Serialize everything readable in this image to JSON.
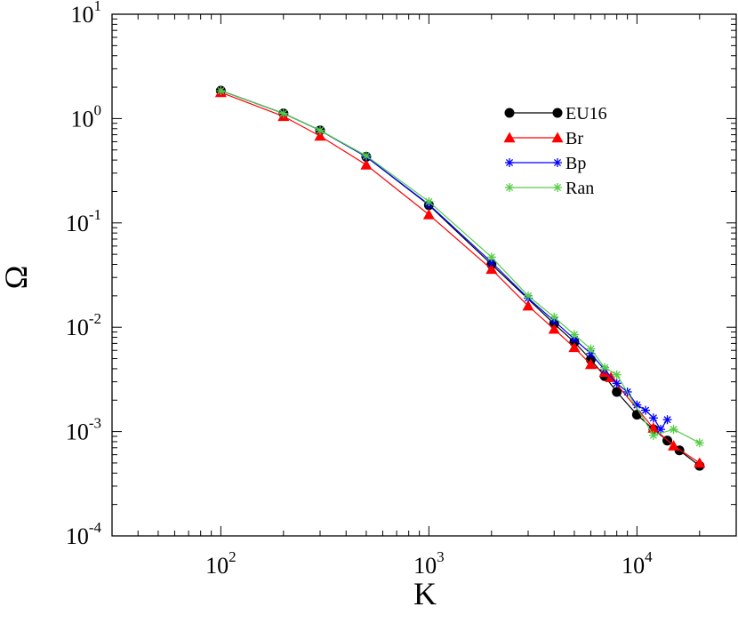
{
  "chart_data": {
    "type": "line",
    "title": "",
    "xlabel": "K",
    "ylabel": "Ω",
    "xscale": "log",
    "yscale": "log",
    "xlim": [
      30,
      30000
    ],
    "ylim": [
      0.0001,
      10
    ],
    "grid": false,
    "legend_position": "top-right",
    "x_ticks": [
      {
        "base": "10",
        "exp": "2",
        "value": 100
      },
      {
        "base": "10",
        "exp": "3",
        "value": 1000
      },
      {
        "base": "10",
        "exp": "4",
        "value": 10000
      }
    ],
    "y_ticks": [
      {
        "base": "10",
        "exp": "-4",
        "value": 0.0001
      },
      {
        "base": "10",
        "exp": "-3",
        "value": 0.001
      },
      {
        "base": "10",
        "exp": "-2",
        "value": 0.01
      },
      {
        "base": "10",
        "exp": "-1",
        "value": 0.1
      },
      {
        "base": "10",
        "exp": "0",
        "value": 1
      },
      {
        "base": "10",
        "exp": "1",
        "value": 10
      }
    ],
    "series": [
      {
        "name": "EU16",
        "color": "#000000",
        "marker": "circle",
        "x": [
          100,
          200,
          300,
          500,
          1000,
          2000,
          4000,
          5000,
          6000,
          7000,
          8000,
          10000,
          12000,
          14000,
          16000,
          20000
        ],
        "y": [
          1.85,
          1.12,
          0.77,
          0.43,
          0.148,
          0.04,
          0.0108,
          0.0072,
          0.0049,
          0.0034,
          0.0024,
          0.00145,
          0.00105,
          0.00082,
          0.00066,
          0.00047
        ]
      },
      {
        "name": "Br",
        "color": "#ff0000",
        "marker": "triangle",
        "x": [
          100,
          200,
          300,
          500,
          1000,
          2000,
          3000,
          4000,
          5000,
          6000,
          7000,
          7500,
          12000,
          15000,
          20000
        ],
        "y": [
          1.78,
          1.05,
          0.68,
          0.36,
          0.12,
          0.036,
          0.016,
          0.0096,
          0.0064,
          0.0044,
          0.0037,
          0.0033,
          0.00108,
          0.00073,
          0.0005
        ]
      },
      {
        "name": "Bp",
        "color": "#0000ff",
        "marker": "star",
        "x": [
          100,
          200,
          300,
          500,
          1000,
          2000,
          3000,
          4000,
          5000,
          6000,
          7000,
          8000,
          9000,
          10000,
          11000,
          12000,
          13000,
          14000
        ],
        "y": [
          1.85,
          1.12,
          0.77,
          0.43,
          0.15,
          0.042,
          0.019,
          0.0115,
          0.0077,
          0.0056,
          0.0039,
          0.0029,
          0.0024,
          0.0018,
          0.0016,
          0.00135,
          0.00105,
          0.0013
        ]
      },
      {
        "name": "Ran",
        "color": "#55cc44",
        "marker": "star",
        "x": [
          100,
          200,
          300,
          500,
          1000,
          2000,
          3000,
          4000,
          5000,
          6000,
          7000,
          8000,
          12000,
          15000,
          20000
        ],
        "y": [
          1.85,
          1.12,
          0.77,
          0.44,
          0.16,
          0.047,
          0.02,
          0.0125,
          0.0085,
          0.0062,
          0.0041,
          0.0035,
          0.00092,
          0.00105,
          0.00078
        ]
      }
    ]
  }
}
